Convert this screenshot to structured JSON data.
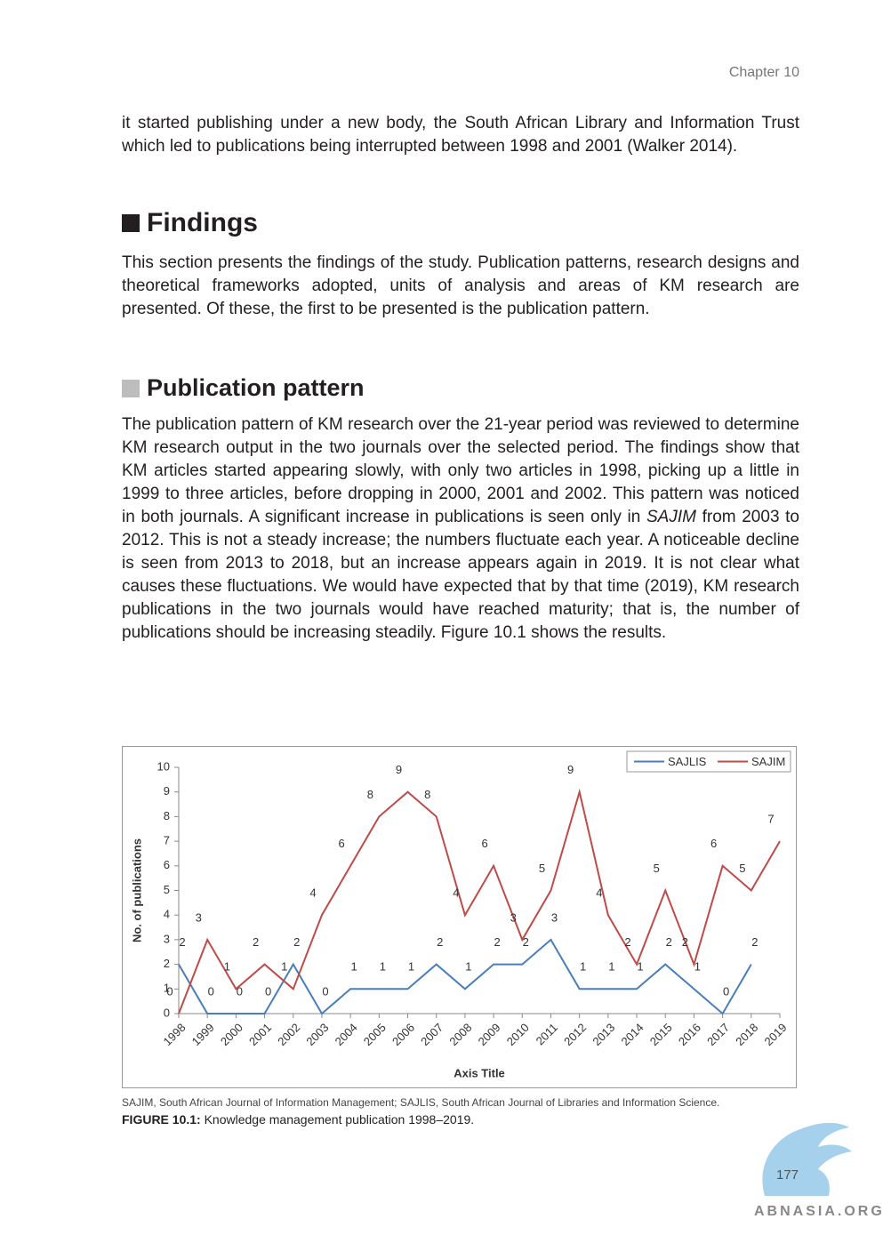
{
  "header": {
    "chapter": "Chapter 10"
  },
  "intro_paragraph": "it started publishing under a new body, the South African Library and Information Trust which led to publications being interrupted between 1998 and 2001 (Walker 2014).",
  "findings": {
    "heading": "Findings",
    "paragraph": "This section presents the findings of the study. Publication patterns, research designs and theoretical frameworks adopted, units of analysis and areas of KM research are presented. Of these, the first to be presented is the publication pattern."
  },
  "publication_pattern": {
    "heading": "Publication pattern",
    "text_before": "The publication pattern of KM research over the 21-year period was reviewed to determine KM research output in the two journals over the selected period. The findings show that KM articles started appearing slowly, with only two articles in 1998, picking up a little in 1999 to three articles, before dropping in 2000, 2001 and 2002. This pattern was noticed in both journals. A significant increase in publications is seen only in ",
    "emphasis": "SAJIM",
    "text_after": " from 2003 to 2012. This is not a steady increase; the numbers fluctuate each year. A noticeable decline is seen from 2013 to 2018, but an increase appears again in 2019. It is not clear what causes these fluctuations. We would have expected that by that time (2019), KM research publications in the two journals would have reached maturity; that is, the number of publications should be increasing steadily. Figure 10.1 shows the results."
  },
  "chart_data": {
    "type": "line",
    "categories": [
      "1998",
      "1999",
      "2000",
      "2001",
      "2002",
      "2003",
      "2004",
      "2005",
      "2006",
      "2007",
      "2008",
      "2009",
      "2010",
      "2011",
      "2012",
      "2013",
      "2014",
      "2015",
      "2016",
      "2017",
      "2018",
      "2019"
    ],
    "series": [
      {
        "name": "SAJLIS",
        "color": "#4a7ebb",
        "values": [
          2,
          0,
          0,
          0,
          2,
          0,
          1,
          1,
          1,
          2,
          1,
          2,
          2,
          3,
          1,
          1,
          1,
          2,
          1,
          0,
          2,
          null
        ]
      },
      {
        "name": "SAJIM",
        "color": "#be4b48",
        "values": [
          0,
          3,
          1,
          2,
          1,
          4,
          6,
          8,
          9,
          8,
          4,
          6,
          3,
          5,
          9,
          4,
          2,
          5,
          2,
          6,
          5,
          7
        ]
      }
    ],
    "ylim": [
      0,
      10
    ],
    "yticks": [
      0,
      1,
      2,
      3,
      4,
      5,
      6,
      7,
      8,
      9,
      10
    ],
    "ylabel": "No. of publications",
    "xlabel": "Axis Title",
    "legend": "upper right",
    "grid": false
  },
  "figure": {
    "note": "SAJIM, South African Journal of Information Management; SAJLIS, South African Journal of Libraries and Information Science.",
    "label": "FIGURE 10.1:",
    "caption": "Knowledge management publication 1998–2019."
  },
  "footer": {
    "page_number": "177",
    "watermark": "ABNASIA.ORG"
  }
}
